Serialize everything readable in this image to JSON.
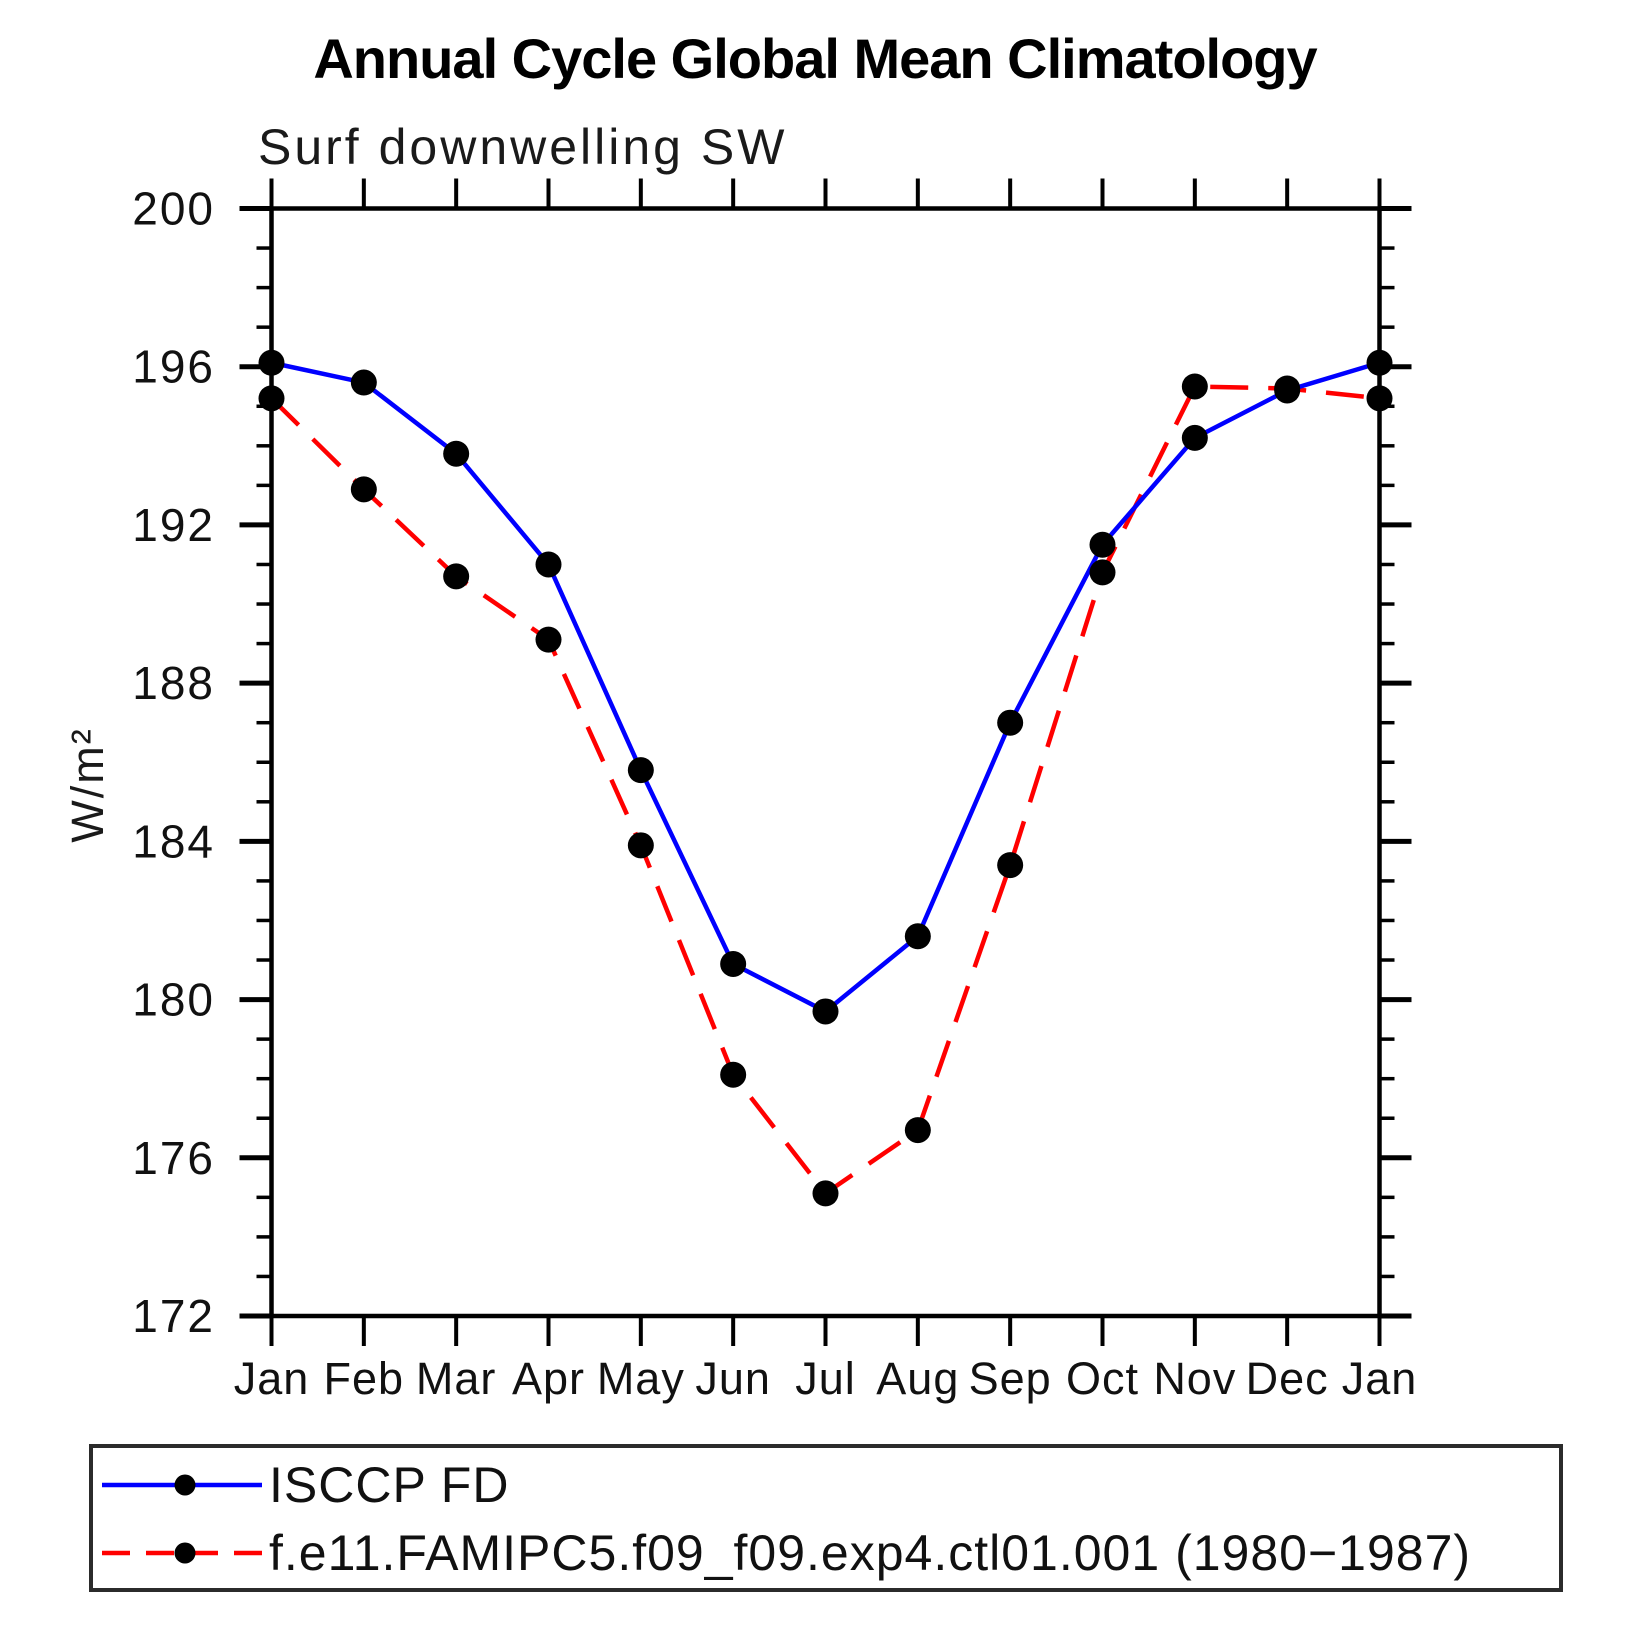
{
  "page": {
    "title": "Annual Cycle Global Mean Climatology",
    "subtitle": "Surf downwelling SW"
  },
  "chart_data": {
    "type": "line",
    "title": "Annual Cycle Global Mean Climatology",
    "subtitle": "Surf downwelling SW",
    "xlabel": "",
    "ylabel": "W/m²",
    "categories": [
      "Jan",
      "Feb",
      "Mar",
      "Apr",
      "May",
      "Jun",
      "Jul",
      "Aug",
      "Sep",
      "Oct",
      "Nov",
      "Dec",
      "Jan"
    ],
    "ylim": [
      172,
      200
    ],
    "ytick_major": [
      172,
      176,
      180,
      184,
      188,
      192,
      196,
      200
    ],
    "ytick_minor_step": 1,
    "grid": false,
    "legend_position": "bottom",
    "axis_color": "#000000",
    "series": [
      {
        "name": "ISCCP FD",
        "color": "#0000ff",
        "style": "solid",
        "marker": "circle",
        "marker_color": "#000000",
        "values": [
          196.1,
          195.6,
          193.8,
          191.0,
          185.8,
          180.9,
          179.7,
          181.6,
          187.0,
          191.5,
          194.2,
          195.4,
          196.1
        ]
      },
      {
        "name": "f.e11.FAMIPC5.f09_f09.exp4.ctl01.001 (1980−1987)",
        "color": "#ff0000",
        "style": "dashed",
        "marker": "circle",
        "marker_color": "#000000",
        "values": [
          195.2,
          192.9,
          190.7,
          189.1,
          183.9,
          178.1,
          175.1,
          176.7,
          183.4,
          190.8,
          195.5,
          195.45,
          195.2
        ]
      }
    ]
  }
}
